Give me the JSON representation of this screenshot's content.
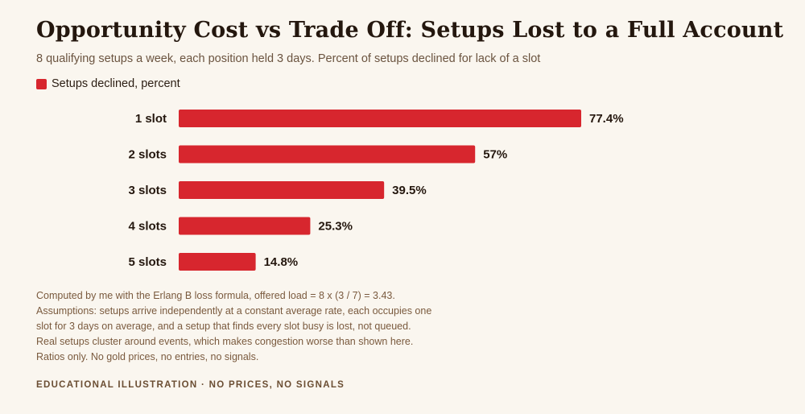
{
  "header": {
    "title": "Opportunity Cost vs Trade Off: Setups Lost to a Full Account",
    "subtitle": "8 qualifying setups a week, each position held 3 days. Percent of setups declined for lack of a slot"
  },
  "legend": {
    "label": "Setups declined, percent",
    "color": "#d7262e"
  },
  "chart_data": {
    "type": "bar",
    "orientation": "horizontal",
    "categories": [
      "1 slot",
      "2 slots",
      "3 slots",
      "4 slots",
      "5 slots"
    ],
    "values": [
      77.4,
      57,
      39.5,
      25.3,
      14.8
    ],
    "value_labels": [
      "77.4%",
      "57%",
      "39.5%",
      "25.3%",
      "14.8%"
    ],
    "series": [
      {
        "name": "Setups declined, percent",
        "values": [
          77.4,
          57,
          39.5,
          25.3,
          14.8
        ]
      }
    ],
    "title": "Opportunity Cost vs Trade Off: Setups Lost to a Full Account",
    "xlabel": "",
    "ylabel": "",
    "xlim": [
      0,
      100
    ],
    "grid": false,
    "legend_position": "top-left",
    "bar_color": "#d7262e"
  },
  "notes": [
    "Computed by me with the Erlang B loss formula, offered load = 8 x (3 / 7) = 3.43.",
    "Assumptions: setups arrive independently at a constant average rate, each occupies one",
    "slot for 3 days on average, and a setup that finds every slot busy is lost, not queued.",
    "Real setups cluster around events, which makes congestion worse than shown here.",
    "Ratios only. No gold prices, no entries, no signals."
  ],
  "footer": "EDUCATIONAL ILLUSTRATION · NO PRICES, NO SIGNALS"
}
